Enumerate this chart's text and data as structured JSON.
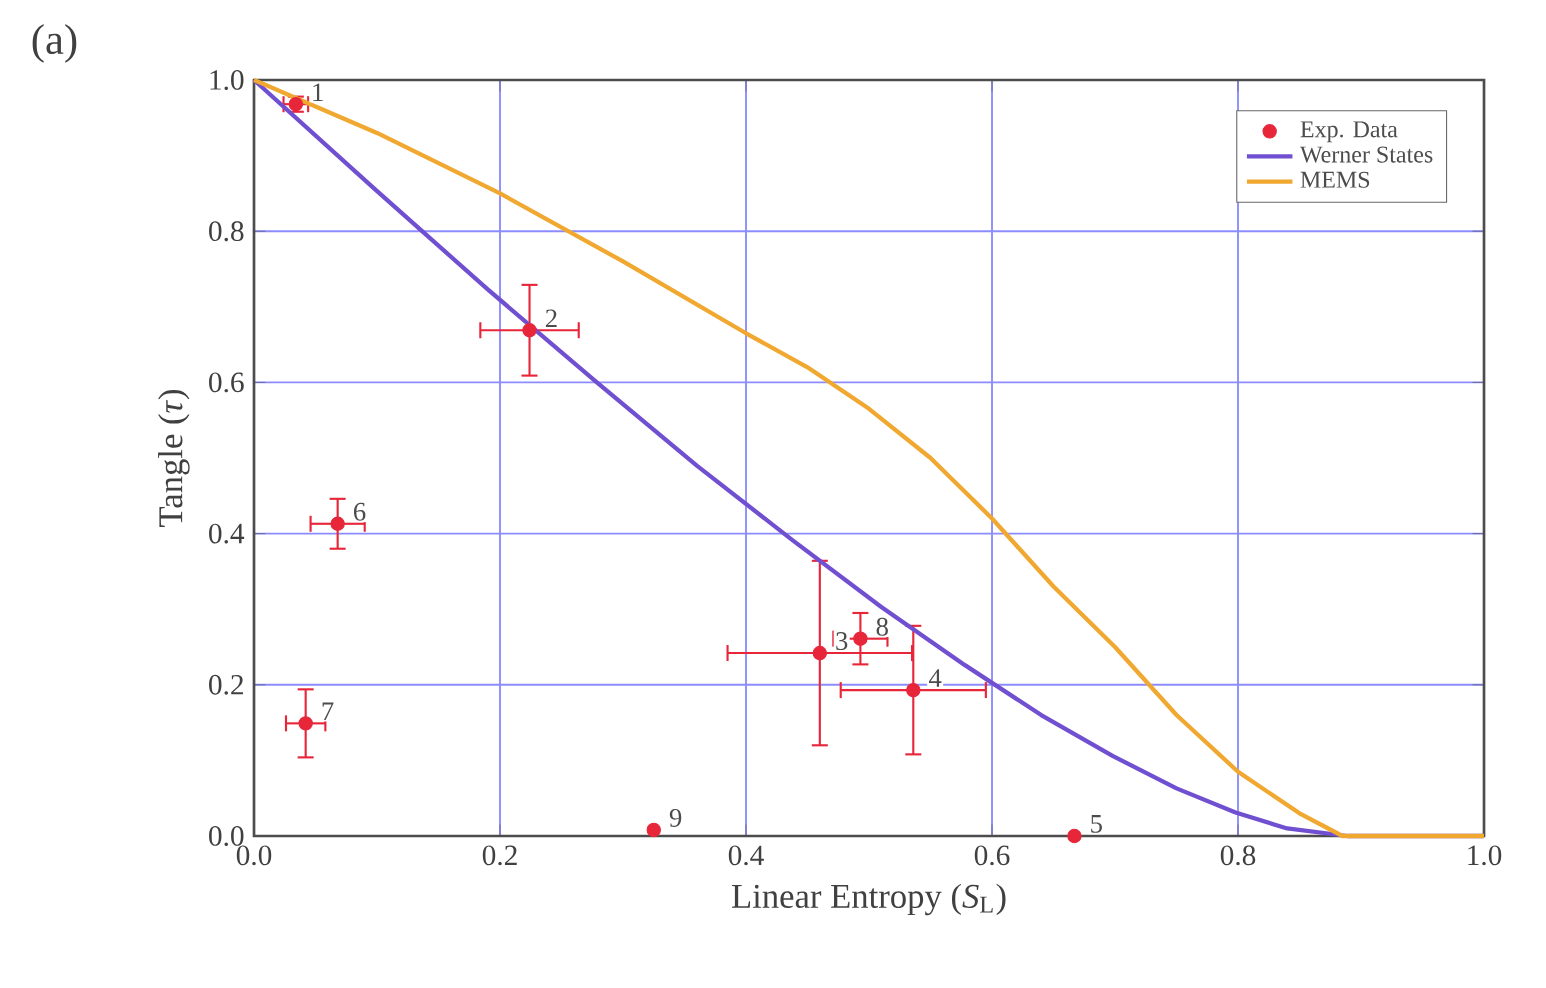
{
  "chart_data": {
    "type": "scatter",
    "xlabel": "Linear Entropy (*S*$_{L}$)",
    "ylabel": "Tangle (*τ*)",
    "xlim": [
      0,
      1
    ],
    "ylim": [
      0,
      1
    ],
    "xticks": [
      {
        "value": 0,
        "label": "0.0"
      },
      0.2,
      0.4,
      0.6,
      0.8,
      {
        "value": 1,
        "label": "1.0"
      }
    ],
    "yticks": [
      {
        "value": 0,
        "label": "0.0"
      },
      0.2,
      0.4,
      0.6,
      0.8,
      {
        "value": 1,
        "label": "1.0"
      }
    ],
    "grid": true,
    "legend": "top right",
    "series": [
      {
        "name": "Exp. Data",
        "marker": "circle",
        "color": "#e8263a",
        "x": [
          0.034,
          0.224,
          0.46,
          0.536,
          0.667,
          0.068,
          0.042,
          0.493,
          0.325
        ],
        "values": [
          0.968,
          0.669,
          0.242,
          0.193,
          0.0,
          0.413,
          0.149,
          0.261,
          0.008
        ],
        "errors": [
          0.01,
          0.06,
          0.122,
          0.085,
          null,
          0.033,
          0.045,
          0.034,
          null
        ],
        "xerrors": [
          0.01,
          0.04,
          0.075,
          0.059,
          null,
          0.022,
          0.016,
          0.022,
          null
        ]
      },
      {
        "name": "Werner States",
        "type": "line",
        "marker": "none",
        "color": "#7050d0",
        "x": [
          0,
          0.098,
          0.19,
          0.278,
          0.36,
          0.438,
          0.51,
          0.578,
          0.64,
          0.698,
          0.75,
          0.798,
          0.84,
          0.889,
          1.0
        ],
        "values": [
          1,
          0.856,
          0.723,
          0.601,
          0.49,
          0.391,
          0.303,
          0.226,
          0.16,
          0.106,
          0.063,
          0.031,
          0.01,
          0,
          0
        ]
      },
      {
        "name": "MEMS",
        "type": "line",
        "marker": "none",
        "color": "#f0a830",
        "x": [
          0,
          0.1,
          0.2,
          0.3,
          0.4,
          0.45,
          0.5,
          0.55,
          0.6,
          0.65,
          0.7,
          0.75,
          0.8,
          0.85,
          0.885,
          1.0
        ],
        "values": [
          1,
          0.93,
          0.85,
          0.76,
          0.665,
          0.62,
          0.565,
          0.5,
          0.42,
          0.33,
          0.25,
          0.16,
          0.085,
          0.03,
          0,
          0
        ]
      }
    ],
    "annotations": [
      "(a)",
      {
        "text": "1",
        "x": 0.034,
        "y": 0.968
      },
      {
        "text": "2",
        "x": 0.224,
        "y": 0.669
      },
      {
        "text": "3",
        "x": 0.46,
        "y": 0.242
      },
      {
        "text": "4",
        "x": 0.536,
        "y": 0.193
      },
      {
        "text": "5",
        "x": 0.667,
        "y": 0.0
      },
      {
        "text": "6",
        "x": 0.068,
        "y": 0.413
      },
      {
        "text": "7",
        "x": 0.042,
        "y": 0.149
      },
      {
        "text": "8",
        "x": 0.493,
        "y": 0.261
      },
      {
        "text": "9",
        "x": 0.325,
        "y": 0.008
      }
    ]
  }
}
